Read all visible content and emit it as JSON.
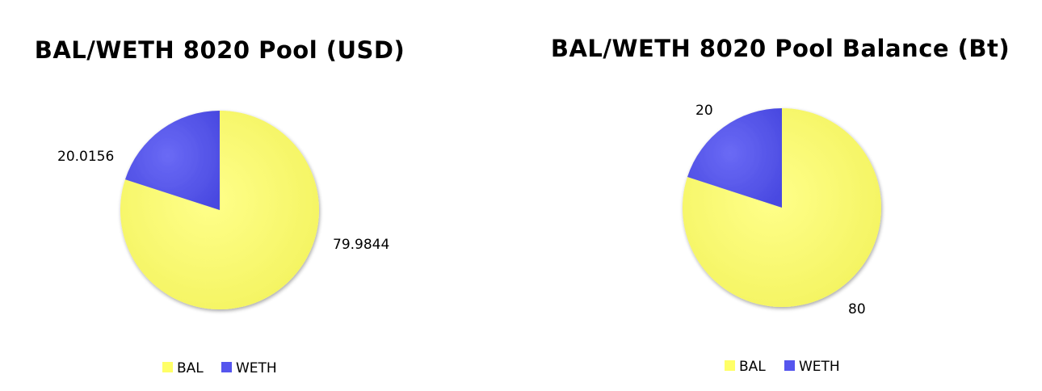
{
  "colors": {
    "BAL": "#ffff66",
    "WETH": "#5555ee"
  },
  "chart_data": [
    {
      "type": "pie",
      "title": "BAL/WETH 8020 Pool (USD)",
      "categories": [
        "BAL",
        "WETH"
      ],
      "values": [
        79.9844,
        20.0156
      ],
      "data_labels": [
        "79.9844",
        "20.0156"
      ],
      "legend": {
        "position": "bottom",
        "entries": [
          "BAL",
          "WETH"
        ]
      }
    },
    {
      "type": "pie",
      "title": "BAL/WETH 8020 Pool Balance (Bt)",
      "categories": [
        "BAL",
        "WETH"
      ],
      "values": [
        80,
        20
      ],
      "data_labels": [
        "80",
        "20"
      ],
      "legend": {
        "position": "bottom",
        "entries": [
          "BAL",
          "WETH"
        ]
      }
    }
  ]
}
